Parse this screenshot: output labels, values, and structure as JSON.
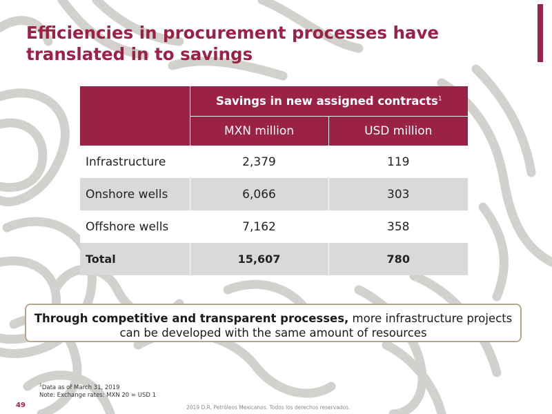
{
  "slide": {
    "title": "Efficiencies in procurement processes have translated in to savings",
    "page_number": "49",
    "copyright": "2019 D.R. Petróleos Mexicanos. Todos los derechos reservados.",
    "colors": {
      "brand": "#9b2247",
      "row_alt": "#d9d9d9",
      "callout_border": "#b5a58e",
      "watermark": "#c8c6c2"
    }
  },
  "table": {
    "group_header": "Savings in new assigned contracts",
    "group_header_sup": "1",
    "columns": [
      "MXN million",
      "USD million"
    ],
    "rows": [
      {
        "label": "Infrastructure",
        "mxn": "2,379",
        "usd": "119"
      },
      {
        "label": "Onshore wells",
        "mxn": "6,066",
        "usd": "303"
      },
      {
        "label": "Offshore wells",
        "mxn": "7,162",
        "usd": "358"
      },
      {
        "label": "Total",
        "mxn": "15,607",
        "usd": "780"
      }
    ]
  },
  "callout": {
    "bold_text": "Through competitive and transparent processes,",
    "text": " more infrastructure projects can be developed with the same amount of resources"
  },
  "footnotes": {
    "sup": "1",
    "line1": "Data as of March 31, 2019",
    "line2": "Note: Exchange rates: MXN 20 = USD 1"
  }
}
